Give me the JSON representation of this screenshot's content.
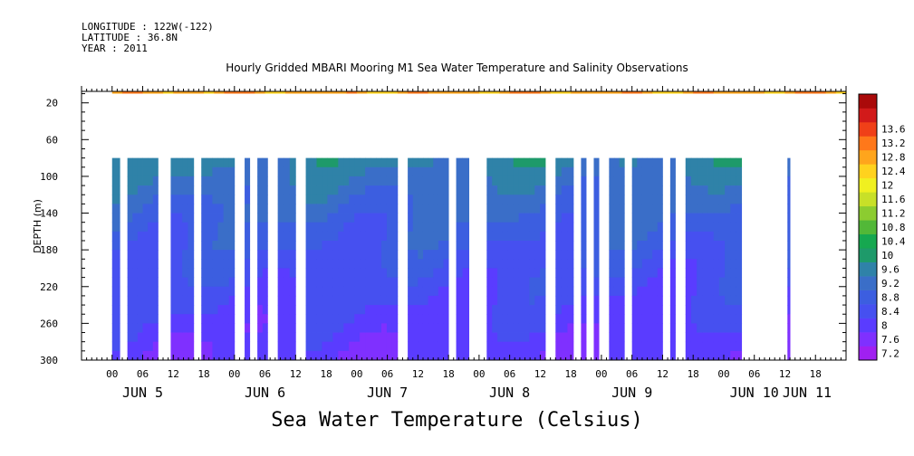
{
  "header": {
    "longitude": "LONGITUDE : 122W(-122)",
    "latitude": "LATITUDE : 36.8N",
    "year": "YEAR : 2011",
    "title": "Hourly Gridded MBARI Mooring M1 Sea Water Temperature and Salinity Observations"
  },
  "footer": {
    "title": "Sea Water Temperature (Celsius)"
  },
  "chart_data": {
    "type": "heatmap",
    "title": "Hourly Gridded MBARI Mooring M1 Sea Water Temperature and Salinity Observations",
    "xlabel": "",
    "ylabel": "DEPTH (m)",
    "colorbar_label": "Sea Water Temperature (Celsius)",
    "x_hour_range": [
      -6,
      144
    ],
    "x_hour_ticks": [
      0,
      6,
      12,
      18,
      24,
      30,
      36,
      42,
      48,
      54,
      60,
      66,
      72,
      78,
      84,
      90,
      96,
      102,
      108,
      114,
      120,
      126,
      132,
      138
    ],
    "x_hour_tick_labels": [
      "00",
      "06",
      "12",
      "18",
      "00",
      "06",
      "12",
      "18",
      "00",
      "06",
      "12",
      "18",
      "00",
      "06",
      "12",
      "18",
      "00",
      "06",
      "12",
      "18",
      "00",
      "06",
      "12",
      "18"
    ],
    "day_labels": [
      {
        "label": "JUN  5",
        "hour": 6
      },
      {
        "label": "JUN  6",
        "hour": 30
      },
      {
        "label": "JUN  7",
        "hour": 54
      },
      {
        "label": "JUN  8",
        "hour": 78
      },
      {
        "label": "JUN  9",
        "hour": 102
      },
      {
        "label": "JUN 10",
        "hour": 126
      },
      {
        "label": "JUN 11",
        "hour": 150
      }
    ],
    "ylim": [
      300,
      0
    ],
    "y_ticks": [
      20,
      60,
      100,
      140,
      180,
      220,
      260,
      300
    ],
    "colorbar_levels": [
      7.2,
      7.6,
      8,
      8.4,
      8.8,
      9.2,
      9.6,
      10,
      10.4,
      10.8,
      11.2,
      11.6,
      12,
      12.4,
      12.8,
      13.2,
      13.6
    ],
    "colorbar_colors": [
      "#a020f0",
      "#7f30ff",
      "#5a3cff",
      "#4650f0",
      "#3c5ee0",
      "#3a6ec8",
      "#2f82a8",
      "#1e9a6a",
      "#16a850",
      "#52b838",
      "#8ccc30",
      "#c8e028",
      "#f0f020",
      "#ffd21e",
      "#ffa51c",
      "#ff781a",
      "#f04018",
      "#d21a1a",
      "#aa0a0a"
    ],
    "surface_band": {
      "depth_range": [
        0,
        10
      ],
      "hour_range": [
        0,
        144
      ],
      "temperature_range": [
        12.0,
        13.2
      ]
    },
    "deep_profile": {
      "depth_range": [
        80,
        300
      ],
      "temperature_at_80m_range": [
        9.0,
        9.8
      ],
      "temperature_at_300m_range": [
        7.2,
        8.0
      ],
      "data_blocks_hours": [
        [
          0,
          1.5
        ],
        [
          3,
          9
        ],
        [
          11.5,
          16
        ],
        [
          17.5,
          24
        ],
        [
          26,
          27
        ],
        [
          28.5,
          30.5
        ],
        [
          32.5,
          36
        ],
        [
          38,
          56
        ],
        [
          58,
          66
        ],
        [
          67.5,
          70
        ],
        [
          73.5,
          85
        ],
        [
          87,
          90.5
        ],
        [
          92,
          93
        ],
        [
          94.5,
          95.5
        ],
        [
          97.5,
          100.5
        ],
        [
          102,
          108
        ],
        [
          109.5,
          110.5
        ],
        [
          112.5,
          123.5
        ],
        [
          132.5,
          133
        ]
      ]
    }
  }
}
